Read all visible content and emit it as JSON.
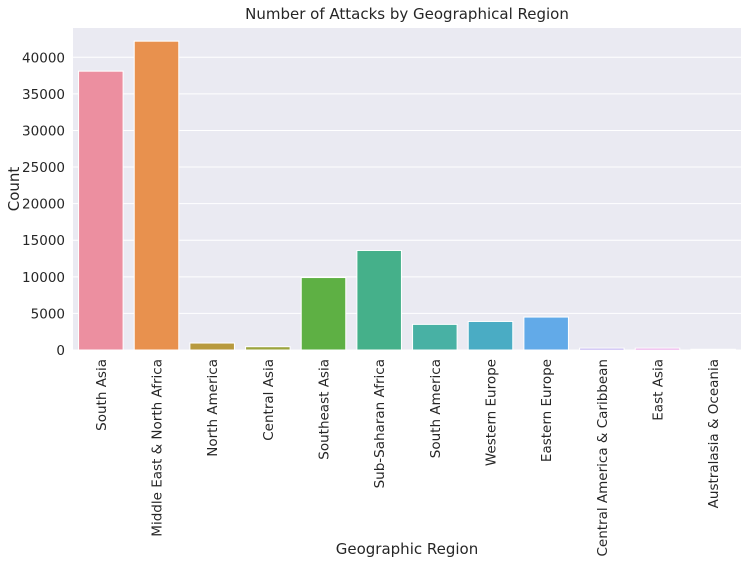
{
  "chart_data": {
    "type": "bar",
    "title": "Number of Attacks by Geographical Region",
    "xlabel": "Geographic Region",
    "ylabel": "Count",
    "ylim": [
      0,
      44000
    ],
    "yticks": [
      0,
      5000,
      10000,
      15000,
      20000,
      25000,
      30000,
      35000,
      40000
    ],
    "grid": true,
    "legend": "none",
    "categories": [
      "South Asia",
      "Middle East & North Africa",
      "North America",
      "Central Asia",
      "Southeast Asia",
      "Sub-Saharan Africa",
      "South America",
      "Western Europe",
      "Eastern Europe",
      "Central America & Caribbean",
      "East Asia",
      "Australasia & Oceania"
    ],
    "values": [
      38100,
      42200,
      950,
      450,
      9900,
      13600,
      3500,
      3900,
      4500,
      250,
      250,
      100
    ],
    "colors": [
      "#ec8fa0",
      "#e8914e",
      "#b89a3e",
      "#9ba43e",
      "#5eb044",
      "#45b08a",
      "#48b1a4",
      "#4aacc4",
      "#62aae8",
      "#ae9aec",
      "#e591e2",
      "#ee8ec2"
    ],
    "background_color": "#eaeaf2",
    "grid_color": "#ffffff"
  }
}
